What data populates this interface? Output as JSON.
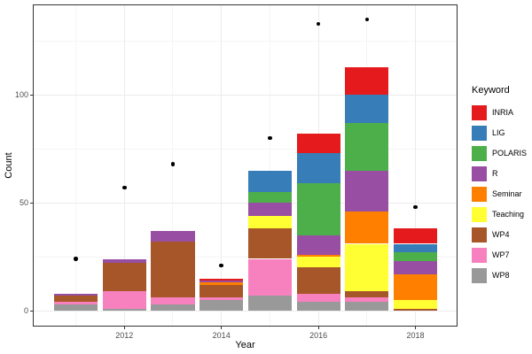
{
  "axes": {
    "x_title": "Year",
    "y_title": "Count",
    "x_ticks": [
      {
        "value": 2012,
        "label": "2012"
      },
      {
        "value": 2014,
        "label": "2014"
      },
      {
        "value": 2016,
        "label": "2016"
      },
      {
        "value": 2018,
        "label": "2018"
      }
    ],
    "y_ticks": [
      {
        "value": 0,
        "label": "0"
      },
      {
        "value": 50,
        "label": "50"
      },
      {
        "value": 100,
        "label": "100"
      }
    ]
  },
  "legend": {
    "title": "Keyword",
    "position": "right"
  },
  "colors": {
    "background": "#FFFFFF",
    "panel_border": "#333333",
    "grid_major": "#EBEBEB",
    "grid_minor": "#F5F5F5",
    "axis_text": "#4D4D4D",
    "title_text": "#000000",
    "point": "#000000"
  },
  "chart_data": {
    "type": "bar",
    "stacked": true,
    "title": "",
    "xlabel": "Year",
    "ylabel": "Count",
    "categories": [
      2011,
      2012,
      2013,
      2014,
      2015,
      2016,
      2017,
      2018
    ],
    "series": [
      {
        "name": "INRIA",
        "color": "#E41A1C",
        "values": [
          0,
          0,
          0,
          1,
          0,
          9,
          13,
          7
        ]
      },
      {
        "name": "LIG",
        "color": "#377EB8",
        "values": [
          0,
          0,
          0,
          0,
          10,
          14,
          13,
          4
        ]
      },
      {
        "name": "POLARIS",
        "color": "#4DAF4A",
        "values": [
          0,
          0,
          0,
          0,
          5,
          24,
          22,
          4
        ]
      },
      {
        "name": "R",
        "color": "#984EA3",
        "values": [
          1,
          2,
          5,
          1,
          6,
          9,
          19,
          6
        ]
      },
      {
        "name": "Seminar",
        "color": "#FF7F00",
        "values": [
          0,
          0,
          0,
          1,
          0,
          1,
          15,
          12
        ]
      },
      {
        "name": "Teaching",
        "color": "#FFFF33",
        "values": [
          0,
          0,
          0,
          0,
          6,
          5,
          22,
          4
        ]
      },
      {
        "name": "WP4",
        "color": "#A65628",
        "values": [
          3,
          13,
          26,
          6,
          14,
          12,
          3,
          1
        ]
      },
      {
        "name": "WP7",
        "color": "#F781BF",
        "values": [
          1,
          8,
          3,
          1,
          17,
          4,
          2,
          0
        ]
      },
      {
        "name": "WP8",
        "color": "#999999",
        "values": [
          3,
          1,
          3,
          5,
          7,
          4,
          4,
          0
        ]
      }
    ],
    "stack_order_bottom_to_top": [
      "WP8",
      "WP7",
      "WP4",
      "Teaching",
      "Seminar",
      "R",
      "POLARIS",
      "LIG",
      "INRIA"
    ],
    "bar_totals": [
      8,
      24,
      37,
      15,
      65,
      82,
      113,
      38
    ],
    "points": {
      "color": "#000000",
      "values": [
        24,
        57,
        68,
        21,
        80,
        133,
        135,
        48
      ]
    },
    "xlim": [
      2010.13,
      2018.85
    ],
    "ylim": [
      -6.75,
      141.75
    ],
    "bar_width_years": 0.9,
    "x_major_gridlines": [
      2012,
      2014,
      2016,
      2018
    ],
    "x_minor_gridlines": [
      2011,
      2013,
      2015,
      2017
    ],
    "y_major_gridlines": [
      0,
      50,
      100
    ],
    "y_minor_gridlines": [
      25,
      75,
      125
    ],
    "grid": true,
    "legend_position": "right"
  }
}
